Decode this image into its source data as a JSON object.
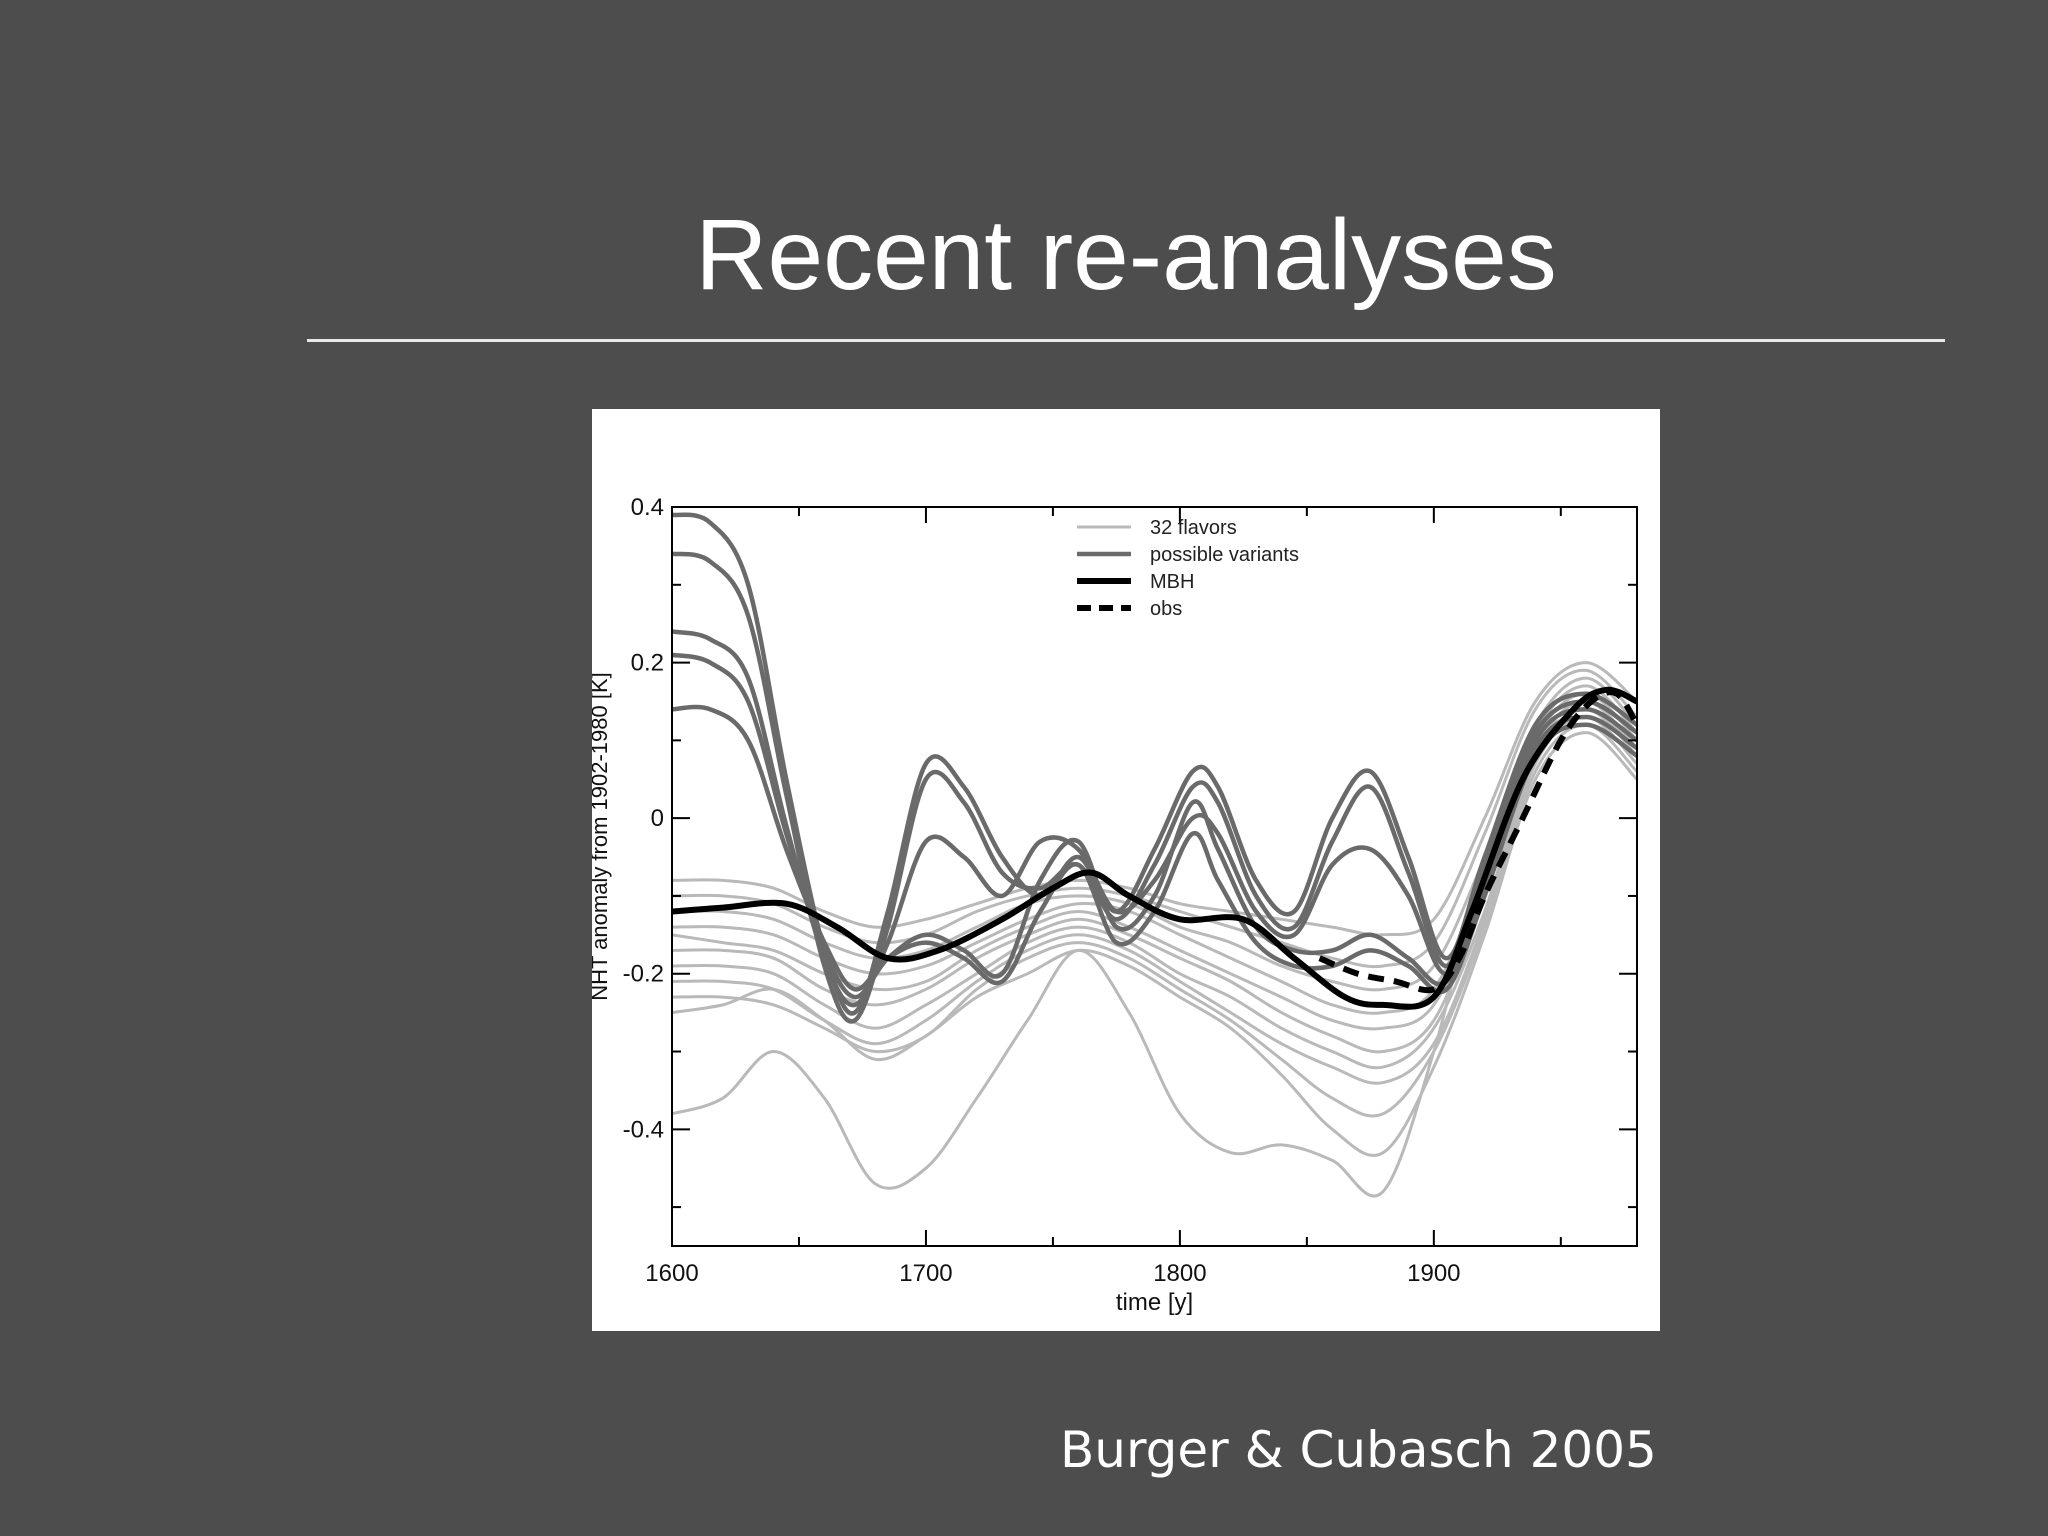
{
  "slide": {
    "title": "Recent re-analyses",
    "citation": "Burger & Cubasch 2005"
  },
  "colors": {
    "background": "#4d4d4d",
    "flavors": "#b9b9b9",
    "variants": "#6a6a6a",
    "mbh": "#000000",
    "obs": "#000000"
  },
  "chart_data": {
    "type": "line",
    "title": "",
    "xlabel": "time [y]",
    "ylabel": "NHT anomaly from 1902-1980  [K]",
    "xlim": [
      1600,
      1980
    ],
    "ylim": [
      -0.55,
      0.4
    ],
    "x_ticks": [
      1600,
      1700,
      1800,
      1900
    ],
    "x_tick_labels": [
      "1600",
      "1700",
      "1800",
      "1900"
    ],
    "y_ticks": [
      0.4,
      0.2,
      0,
      -0.2,
      -0.4
    ],
    "y_tick_labels": [
      "0.4",
      "0.2",
      "0",
      "-0.2",
      "-0.4"
    ],
    "grid": false,
    "legend_position": "top-center",
    "legend": [
      {
        "label": "32 flavors",
        "style": "flavors"
      },
      {
        "label": "possible variants",
        "style": "variants"
      },
      {
        "label": "MBH",
        "style": "mbh"
      },
      {
        "label": "obs",
        "style": "obs"
      }
    ],
    "groups": [
      {
        "name": "32 flavors",
        "style": "flavors",
        "x": [
          1600,
          1620,
          1640,
          1660,
          1680,
          1700,
          1720,
          1740,
          1760,
          1780,
          1800,
          1820,
          1840,
          1860,
          1880,
          1900,
          1920,
          1940,
          1960,
          1980
        ],
        "series": [
          {
            "values": [
              -0.08,
              -0.08,
              -0.09,
              -0.12,
              -0.14,
              -0.13,
              -0.11,
              -0.09,
              -0.08,
              -0.09,
              -0.11,
              -0.12,
              -0.13,
              -0.14,
              -0.15,
              -0.13,
              0.0,
              0.15,
              0.2,
              0.15
            ]
          },
          {
            "values": [
              -0.1,
              -0.1,
              -0.11,
              -0.14,
              -0.16,
              -0.15,
              -0.12,
              -0.1,
              -0.09,
              -0.1,
              -0.12,
              -0.14,
              -0.16,
              -0.18,
              -0.19,
              -0.16,
              -0.02,
              0.14,
              0.19,
              0.13
            ]
          },
          {
            "values": [
              -0.12,
              -0.12,
              -0.13,
              -0.16,
              -0.18,
              -0.17,
              -0.14,
              -0.11,
              -0.1,
              -0.11,
              -0.14,
              -0.16,
              -0.19,
              -0.21,
              -0.22,
              -0.19,
              -0.05,
              0.12,
              0.18,
              0.12
            ]
          },
          {
            "values": [
              -0.14,
              -0.14,
              -0.15,
              -0.18,
              -0.2,
              -0.19,
              -0.16,
              -0.13,
              -0.11,
              -0.12,
              -0.15,
              -0.18,
              -0.21,
              -0.24,
              -0.25,
              -0.22,
              -0.07,
              0.11,
              0.17,
              0.11
            ]
          },
          {
            "values": [
              -0.15,
              -0.16,
              -0.17,
              -0.2,
              -0.22,
              -0.21,
              -0.17,
              -0.14,
              -0.12,
              -0.14,
              -0.17,
              -0.2,
              -0.23,
              -0.26,
              -0.27,
              -0.24,
              -0.09,
              0.1,
              0.16,
              0.1
            ]
          },
          {
            "values": [
              -0.17,
              -0.17,
              -0.18,
              -0.22,
              -0.24,
              -0.22,
              -0.18,
              -0.15,
              -0.13,
              -0.15,
              -0.18,
              -0.21,
              -0.25,
              -0.28,
              -0.3,
              -0.26,
              -0.1,
              0.09,
              0.15,
              0.09
            ]
          },
          {
            "values": [
              -0.19,
              -0.19,
              -0.2,
              -0.24,
              -0.27,
              -0.24,
              -0.2,
              -0.16,
              -0.14,
              -0.16,
              -0.2,
              -0.23,
              -0.27,
              -0.3,
              -0.32,
              -0.27,
              -0.12,
              0.08,
              0.14,
              0.08
            ]
          },
          {
            "values": [
              -0.21,
              -0.21,
              -0.22,
              -0.26,
              -0.29,
              -0.26,
              -0.21,
              -0.17,
              -0.15,
              -0.17,
              -0.21,
              -0.25,
              -0.29,
              -0.32,
              -0.34,
              -0.29,
              -0.13,
              0.07,
              0.13,
              0.07
            ]
          },
          {
            "values": [
              -0.23,
              -0.23,
              -0.24,
              -0.27,
              -0.3,
              -0.28,
              -0.22,
              -0.18,
              -0.16,
              -0.18,
              -0.22,
              -0.26,
              -0.31,
              -0.36,
              -0.38,
              -0.3,
              -0.14,
              0.06,
              0.12,
              0.06
            ]
          },
          {
            "values": [
              -0.25,
              -0.24,
              -0.22,
              -0.26,
              -0.31,
              -0.28,
              -0.23,
              -0.2,
              -0.17,
              -0.19,
              -0.23,
              -0.27,
              -0.33,
              -0.4,
              -0.43,
              -0.32,
              -0.15,
              0.05,
              0.11,
              0.05
            ]
          },
          {
            "values": [
              -0.38,
              -0.36,
              -0.3,
              -0.36,
              -0.47,
              -0.45,
              -0.36,
              -0.26,
              -0.17,
              -0.25,
              -0.38,
              -0.43,
              -0.42,
              -0.44,
              -0.48,
              -0.3,
              -0.05,
              0.1,
              0.13,
              0.1
            ]
          }
        ]
      },
      {
        "name": "possible variants",
        "style": "variants",
        "x": [
          1600,
          1615,
          1630,
          1645,
          1660,
          1672,
          1685,
          1700,
          1715,
          1730,
          1745,
          1760,
          1775,
          1790,
          1805,
          1815,
          1830,
          1845,
          1860,
          1875,
          1890,
          1905,
          1920,
          1940,
          1960,
          1980
        ],
        "series": [
          {
            "values": [
              0.39,
              0.38,
              0.3,
              0.05,
              -0.17,
              -0.25,
              -0.12,
              0.07,
              0.04,
              -0.05,
              -0.1,
              -0.05,
              -0.12,
              -0.04,
              0.06,
              0.04,
              -0.08,
              -0.12,
              0.0,
              0.06,
              -0.05,
              -0.18,
              -0.05,
              0.12,
              0.16,
              0.12
            ]
          },
          {
            "values": [
              0.34,
              0.33,
              0.26,
              0.03,
              -0.19,
              -0.26,
              -0.14,
              0.05,
              0.02,
              -0.07,
              -0.09,
              -0.06,
              -0.13,
              -0.06,
              0.04,
              0.02,
              -0.1,
              -0.14,
              -0.03,
              0.04,
              -0.07,
              -0.19,
              -0.06,
              0.11,
              0.15,
              0.11
            ]
          },
          {
            "values": [
              0.24,
              0.23,
              0.18,
              -0.01,
              -0.18,
              -0.24,
              -0.16,
              -0.03,
              -0.05,
              -0.1,
              -0.03,
              -0.04,
              -0.12,
              -0.08,
              0.0,
              -0.02,
              -0.12,
              -0.15,
              -0.06,
              -0.04,
              -0.1,
              -0.2,
              -0.08,
              0.1,
              0.14,
              0.1
            ]
          },
          {
            "values": [
              0.21,
              0.2,
              0.15,
              -0.02,
              -0.17,
              -0.23,
              -0.18,
              -0.15,
              -0.17,
              -0.2,
              -0.08,
              -0.03,
              -0.14,
              -0.1,
              0.02,
              -0.04,
              -0.14,
              -0.17,
              -0.17,
              -0.15,
              -0.18,
              -0.21,
              -0.09,
              0.09,
              0.13,
              0.09
            ]
          },
          {
            "values": [
              0.14,
              0.14,
              0.1,
              -0.04,
              -0.16,
              -0.22,
              -0.18,
              -0.16,
              -0.18,
              -0.21,
              -0.12,
              -0.06,
              -0.16,
              -0.12,
              -0.02,
              -0.08,
              -0.16,
              -0.19,
              -0.19,
              -0.17,
              -0.19,
              -0.22,
              -0.1,
              0.08,
              0.12,
              0.08
            ]
          }
        ]
      },
      {
        "name": "MBH",
        "style": "mbh",
        "x": [
          1600,
          1620,
          1645,
          1665,
          1685,
          1705,
          1730,
          1750,
          1765,
          1780,
          1800,
          1825,
          1845,
          1865,
          1880,
          1900,
          1915,
          1935,
          1955,
          1968,
          1980
        ],
        "series": [
          {
            "values": [
              -0.12,
              -0.115,
              -0.11,
              -0.14,
              -0.18,
              -0.17,
              -0.13,
              -0.09,
              -0.07,
              -0.1,
              -0.13,
              -0.13,
              -0.18,
              -0.23,
              -0.24,
              -0.23,
              -0.12,
              0.05,
              0.14,
              0.165,
              0.15
            ]
          }
        ]
      },
      {
        "name": "obs",
        "style": "obs",
        "x": [
          1855,
          1870,
          1885,
          1900,
          1910,
          1920,
          1935,
          1950,
          1962,
          1972,
          1980
        ],
        "series": [
          {
            "values": [
              -0.18,
              -0.2,
              -0.21,
              -0.22,
              -0.18,
              -0.1,
              0.0,
              0.1,
              0.15,
              0.16,
              0.12
            ]
          }
        ]
      }
    ]
  }
}
